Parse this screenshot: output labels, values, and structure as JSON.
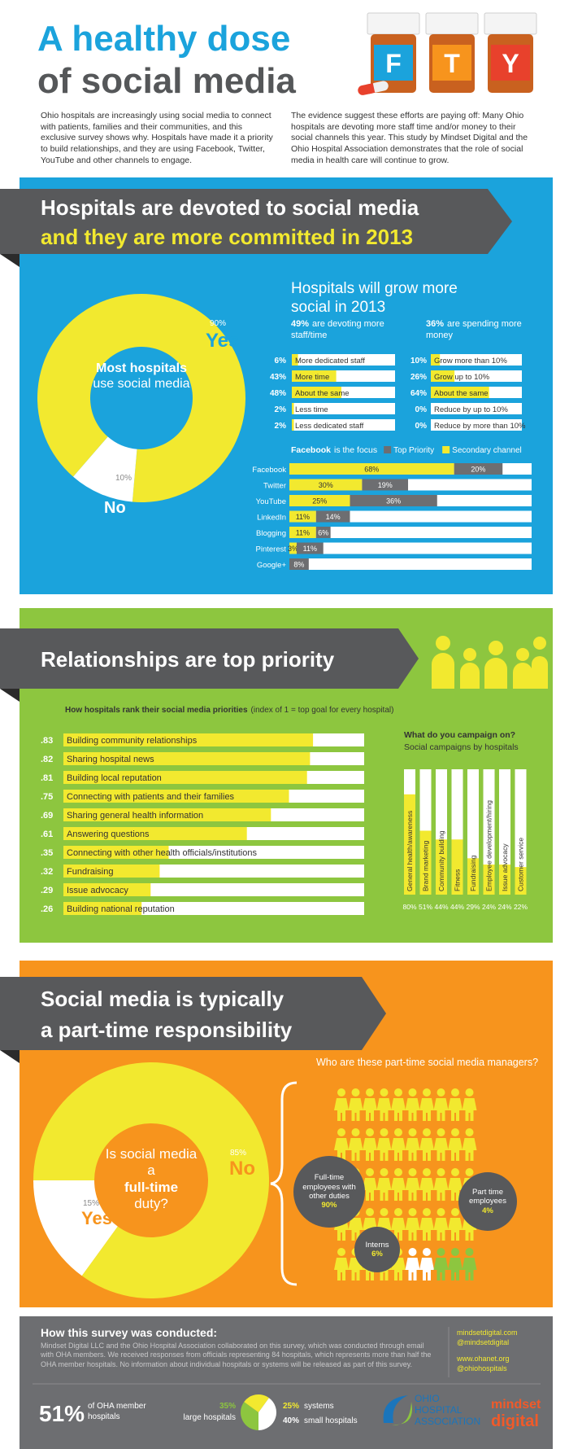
{
  "header": {
    "title_line1": "A healthy dose",
    "title_line2": "of social media",
    "bottle_letters": [
      "F",
      "T",
      "Y"
    ],
    "intro_left": "Ohio hospitals are increasingly using social media to connect with patients, families and their communities, and this exclusive survey shows why. Hospitals have made it a priority to build relationships, and they are using Facebook, Twitter, YouTube and other channels to engage.",
    "intro_right": "The evidence suggest these efforts are paying off: Many Ohio hospitals are devoting more staff time and/or money to their social channels this year. This study by Mindset Digital and the Ohio Hospital Association demonstrates that the role of social media in health care will continue to grow."
  },
  "sections": [
    {
      "heading": [
        "Hospitals are devoted to social media",
        "and they are more committed in 2013"
      ],
      "subheading": "Hospitals will grow more social in 2013"
    },
    {
      "heading": [
        "Relationships are top priority"
      ]
    },
    {
      "heading": [
        "Social media is typically",
        "a part-time responsibility"
      ],
      "subheading": "Who are these part-time social media managers?"
    }
  ],
  "chart_data": [
    {
      "type": "donut",
      "categories": [
        "Yes",
        "No"
      ],
      "values": [
        90,
        10
      ],
      "value_labels": [
        "90%",
        "10%"
      ],
      "colors": [
        "#f2e92f",
        "#ffffff"
      ],
      "center_label": [
        "Most hospitals",
        "use social media"
      ]
    },
    {
      "type": "hbar",
      "title": [
        "49%",
        "are devoting more staff/time"
      ],
      "categories": [
        "More dedicated staff",
        "More time",
        "About the same",
        "Less time",
        "Less dedicated staff"
      ],
      "values": [
        6,
        43,
        48,
        2,
        2
      ],
      "value_labels": [
        "6%",
        "43%",
        "48%",
        "2%",
        "2%"
      ],
      "xlim": [
        0,
        100
      ],
      "color": "#f2e92f"
    },
    {
      "type": "hbar",
      "title": [
        "36%",
        "are spending more money"
      ],
      "categories": [
        "Grow more than 10%",
        "Grow up to 10%",
        "About the same",
        "Reduce by up to 10%",
        "Reduce by more than 10%"
      ],
      "values": [
        10,
        26,
        64,
        0,
        0
      ],
      "value_labels": [
        "10%",
        "26%",
        "64%",
        "0%",
        "0%"
      ],
      "xlim": [
        0,
        100
      ],
      "color": "#f2e92f"
    },
    {
      "type": "stacked_hbar",
      "title": [
        "Facebook",
        "is the focus"
      ],
      "categories": [
        "Facebook",
        "Twitter",
        "YouTube",
        "LinkedIn",
        "Blogging",
        "Pinterest",
        "Google+"
      ],
      "series": [
        {
          "name": "Top Priority",
          "color": "#6d6e71",
          "values": [
            20,
            19,
            36,
            14,
            6,
            11,
            8
          ],
          "value_labels": [
            "20%",
            "19%",
            "36%",
            "14%",
            "6%",
            "11%",
            "8%"
          ]
        },
        {
          "name": "Secondary channel",
          "color": "#f2e92f",
          "values": [
            68,
            30,
            25,
            11,
            11,
            3,
            null
          ],
          "value_labels": [
            "68%",
            "30%",
            "25%",
            "11%",
            "11%",
            "3%",
            null
          ]
        }
      ],
      "xlim": [
        0,
        100
      ]
    },
    {
      "type": "hbar",
      "title": "How hospitals rank their social media priorities",
      "subtitle": "(index of 1 = top goal for every hospital)",
      "categories": [
        "Building community relationships",
        "Sharing hospital news",
        "Building local reputation",
        "Connecting with patients and their families",
        "Sharing general health information",
        "Answering questions",
        "Connecting with other health officials/institutions",
        "Fundraising",
        "Issue advocacy",
        "Building national reputation"
      ],
      "values": [
        0.83,
        0.82,
        0.81,
        0.75,
        0.69,
        0.61,
        0.35,
        0.32,
        0.29,
        0.26
      ],
      "value_labels": [
        ".83",
        ".82",
        ".81",
        ".75",
        ".69",
        ".61",
        ".35",
        ".32",
        ".29",
        ".26"
      ],
      "xlim": [
        0,
        1
      ],
      "color": "#f2e92f"
    },
    {
      "type": "vbar",
      "title": "What do you campaign on?",
      "subtitle": "Social campaigns by hospitals",
      "categories": [
        "General health/awareness",
        "Brand marketing",
        "Community building",
        "Fitness",
        "Fundraising",
        "Employee development/hiring",
        "Issue advocacy",
        "Customer service"
      ],
      "values": [
        80,
        51,
        44,
        44,
        29,
        24,
        24,
        22
      ],
      "value_labels": [
        "80%",
        "51%",
        "44%",
        "44%",
        "29%",
        "24%",
        "24%",
        "22%"
      ],
      "ylim": [
        0,
        100
      ],
      "color": "#f2e92f"
    },
    {
      "type": "donut",
      "categories": [
        "Yes",
        "No"
      ],
      "values": [
        15,
        85
      ],
      "value_labels": [
        "15%",
        "85%"
      ],
      "colors": [
        "#ffffff",
        "#f2e92f"
      ],
      "center_label": [
        "Is social media a",
        "full-time",
        "duty?"
      ]
    },
    {
      "type": "pictogram",
      "categories": [
        "Full-time employees with other duties",
        "Part time employees",
        "Interns"
      ],
      "values": [
        90,
        4,
        6
      ],
      "value_labels": [
        "90%",
        "4%",
        "6%"
      ],
      "colors": [
        "#f2e92f",
        "#ffffff",
        "#8dc63f"
      ]
    },
    {
      "type": "pie",
      "categories": [
        "large hospitals",
        "systems",
        "small hospitals"
      ],
      "values": [
        35,
        25,
        40
      ],
      "value_labels": [
        "35%",
        "25%",
        "40%"
      ],
      "colors": [
        "#8dc63f",
        "#f2e92f",
        "#ffffff"
      ]
    }
  ],
  "footer": {
    "title": "How this survey was conducted:",
    "text": "Mindset Digital LLC and the Ohio Hospital Association collaborated on this survey, which was conducted through email with OHA members. We received responses from officials representing 84 hospitals, which represents more than half the OHA member hospitals. No information about individual hospitals or systems will be released as part of this survey.",
    "links": [
      "mindsetdigital.com",
      "@mindsetdigital",
      "www.ohanet.org",
      "@ohiohospitals"
    ],
    "stat_value": "51%",
    "stat_label": "of OHA member hospitals",
    "logos": {
      "oha": [
        "OHIO",
        "HOSPITAL",
        "ASSOCIATION"
      ],
      "mindset": [
        "mindset",
        "digital"
      ]
    }
  }
}
